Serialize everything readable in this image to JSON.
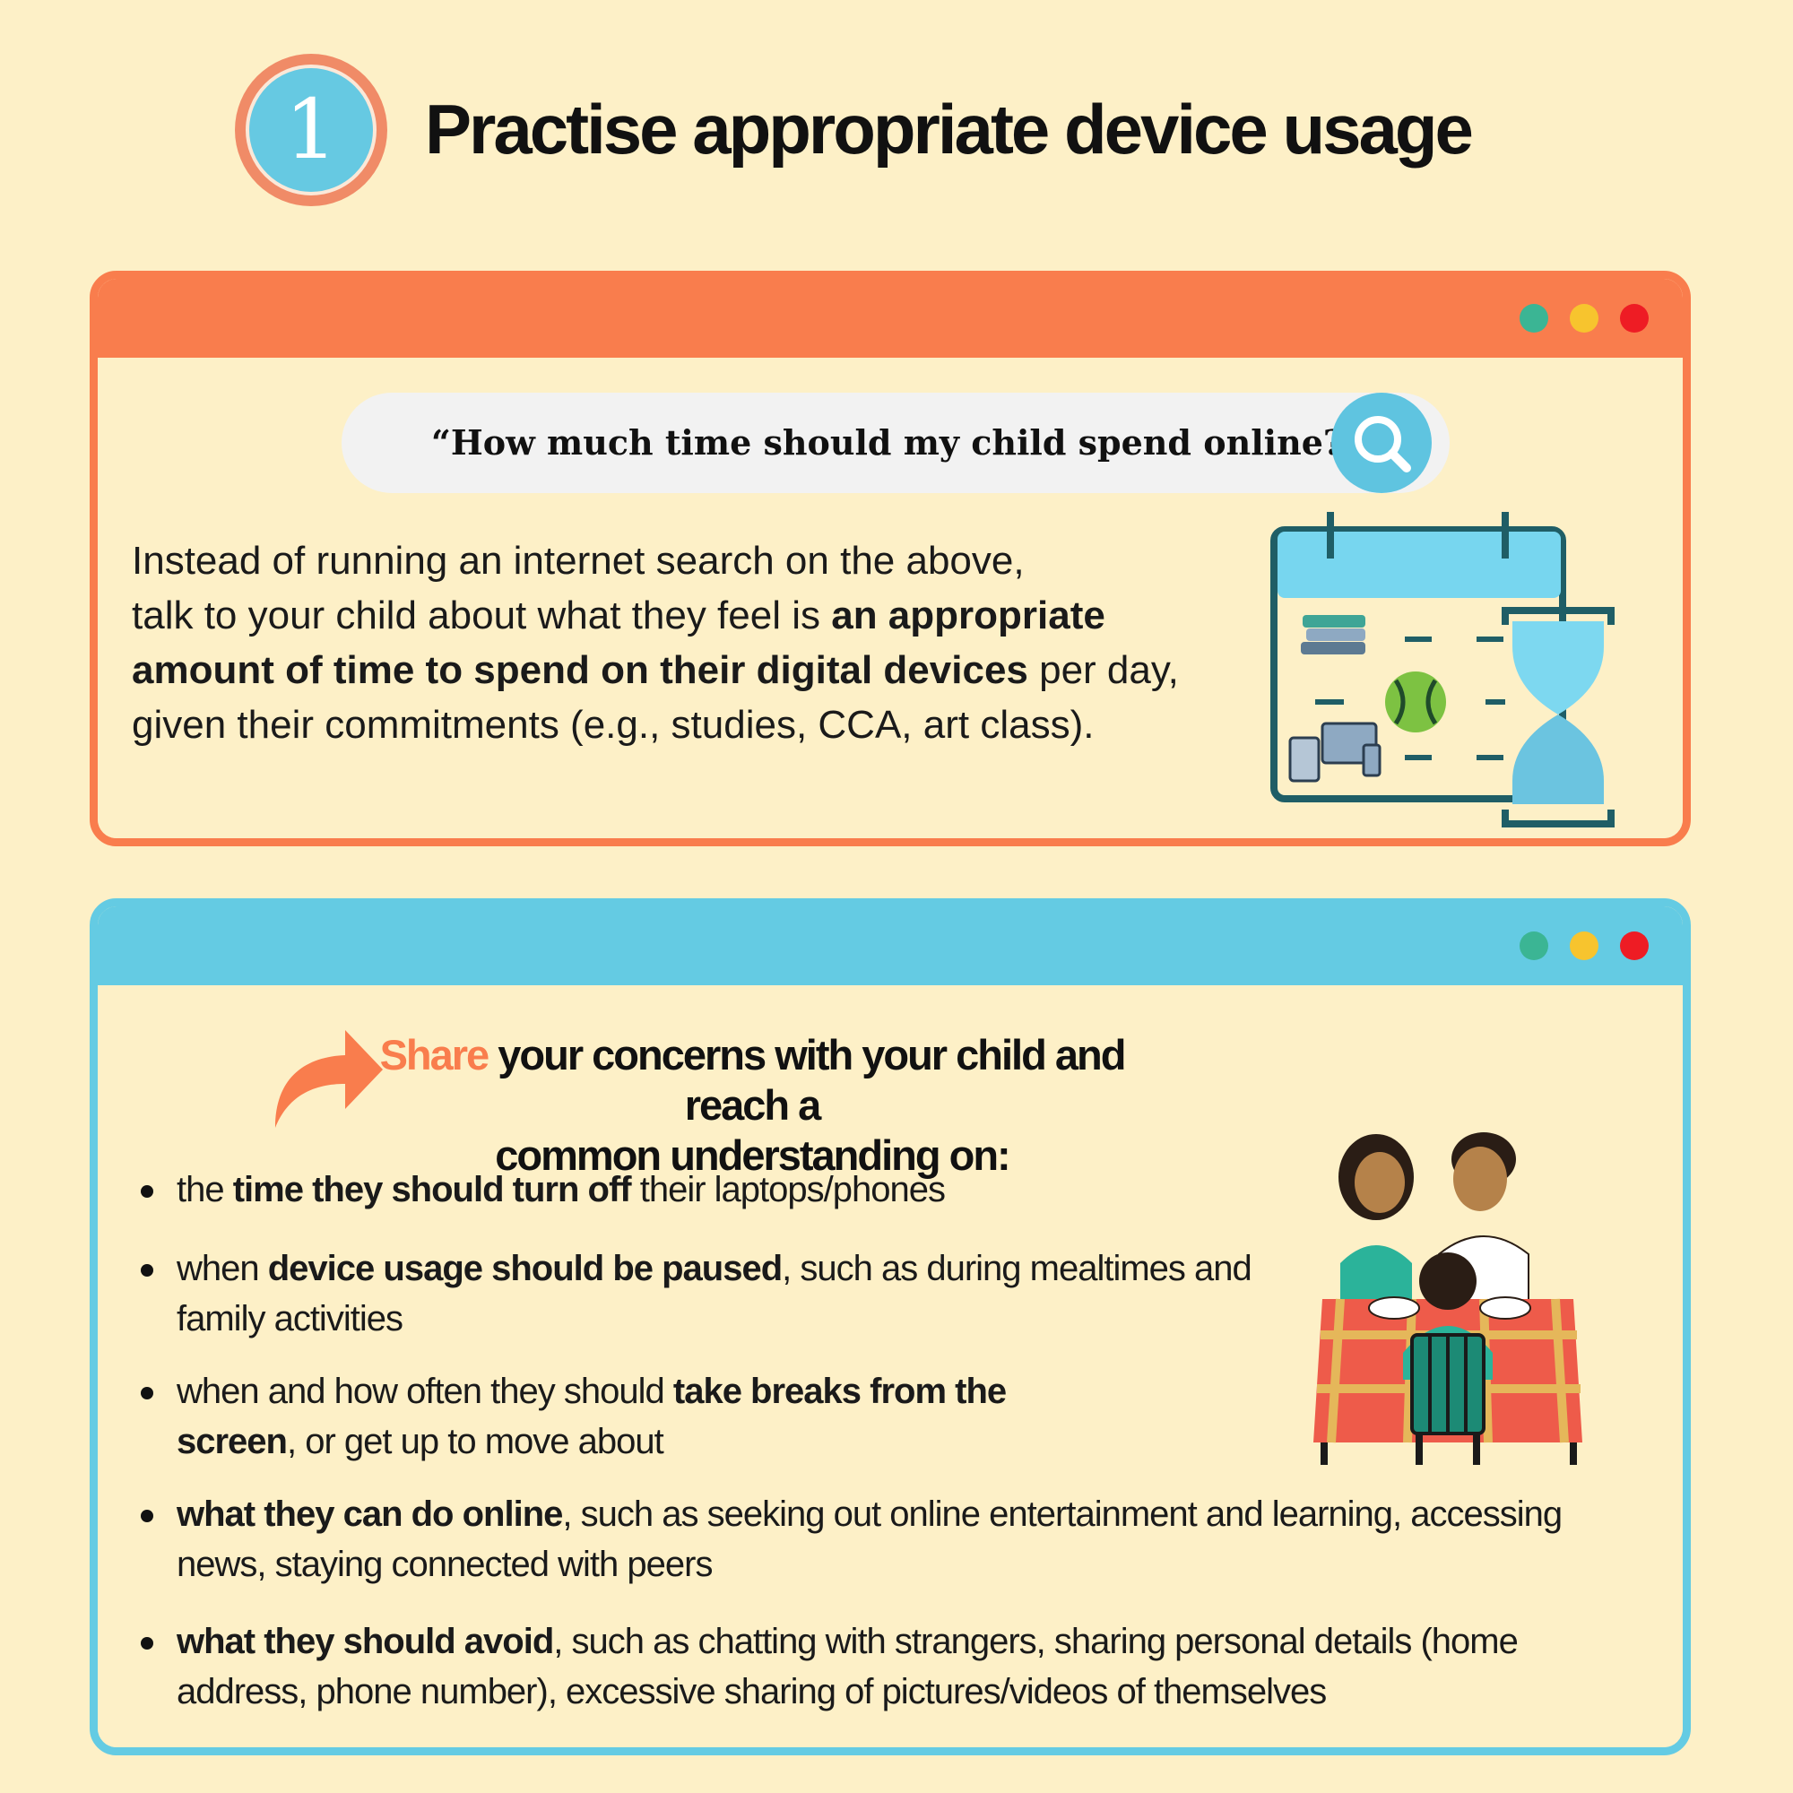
{
  "header": {
    "step_number": "1",
    "title": "Practise appropriate device usage"
  },
  "window_dots": [
    "#3bb594",
    "#f7c42e",
    "#ee1c24"
  ],
  "card1": {
    "search_query": "“How much time should my child spend online?”",
    "paragraph": {
      "line1": "Instead of running an internet search on the above,",
      "line2a": "talk to your child about what they feel is ",
      "line2b": "an appropriate",
      "line3a": "amount of time to spend on their digital devices",
      "line3b": " per day,",
      "line4": "given their commitments (e.g., studies, CCA, art class)."
    }
  },
  "card2": {
    "heading_accent": "Share",
    "heading_rest_1": " your concerns with your child and reach a",
    "heading_rest_2": "common understanding on:",
    "bullets": [
      {
        "a": "the ",
        "b": "time they should turn off",
        "c": " their laptops/phones",
        "d": ""
      },
      {
        "a": "when ",
        "b": "device usage should be paused",
        "c": ", such as during mealtimes and",
        "d": "family activities"
      },
      {
        "a": "when and how often they should ",
        "b": "take breaks from the",
        "c": "",
        "b2": "screen",
        "d": ", or get up to move about"
      },
      {
        "a": "",
        "b": "what they can do online",
        "c": ", such as seeking out online entertainment and learning, accessing",
        "d": "news, staying connected with peers"
      },
      {
        "a": "",
        "b": "what they should avoid",
        "c": ", such as chatting with strangers, sharing personal details (home",
        "d": "address, phone number), excessive sharing of pictures/videos of themselves"
      }
    ]
  },
  "icons": {
    "search": "search-icon",
    "calendar": "calendar-hourglass-illustration",
    "arrow": "share-arrow-icon",
    "family": "family-dinner-illustration"
  }
}
